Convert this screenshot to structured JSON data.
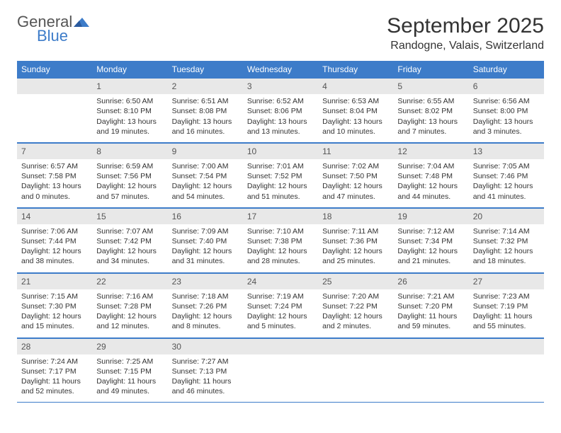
{
  "logo": {
    "text1": "General",
    "text2": "Blue"
  },
  "title": "September 2025",
  "location": "Randogne, Valais, Switzerland",
  "colors": {
    "accent": "#3d7cc9",
    "daynum_bg": "#e8e8e8"
  },
  "day_headers": [
    "Sunday",
    "Monday",
    "Tuesday",
    "Wednesday",
    "Thursday",
    "Friday",
    "Saturday"
  ],
  "weeks": [
    [
      {
        "n": "",
        "sr": "",
        "ss": "",
        "dl1": "",
        "dl2": ""
      },
      {
        "n": "1",
        "sr": "Sunrise: 6:50 AM",
        "ss": "Sunset: 8:10 PM",
        "dl1": "Daylight: 13 hours",
        "dl2": "and 19 minutes."
      },
      {
        "n": "2",
        "sr": "Sunrise: 6:51 AM",
        "ss": "Sunset: 8:08 PM",
        "dl1": "Daylight: 13 hours",
        "dl2": "and 16 minutes."
      },
      {
        "n": "3",
        "sr": "Sunrise: 6:52 AM",
        "ss": "Sunset: 8:06 PM",
        "dl1": "Daylight: 13 hours",
        "dl2": "and 13 minutes."
      },
      {
        "n": "4",
        "sr": "Sunrise: 6:53 AM",
        "ss": "Sunset: 8:04 PM",
        "dl1": "Daylight: 13 hours",
        "dl2": "and 10 minutes."
      },
      {
        "n": "5",
        "sr": "Sunrise: 6:55 AM",
        "ss": "Sunset: 8:02 PM",
        "dl1": "Daylight: 13 hours",
        "dl2": "and 7 minutes."
      },
      {
        "n": "6",
        "sr": "Sunrise: 6:56 AM",
        "ss": "Sunset: 8:00 PM",
        "dl1": "Daylight: 13 hours",
        "dl2": "and 3 minutes."
      }
    ],
    [
      {
        "n": "7",
        "sr": "Sunrise: 6:57 AM",
        "ss": "Sunset: 7:58 PM",
        "dl1": "Daylight: 13 hours",
        "dl2": "and 0 minutes."
      },
      {
        "n": "8",
        "sr": "Sunrise: 6:59 AM",
        "ss": "Sunset: 7:56 PM",
        "dl1": "Daylight: 12 hours",
        "dl2": "and 57 minutes."
      },
      {
        "n": "9",
        "sr": "Sunrise: 7:00 AM",
        "ss": "Sunset: 7:54 PM",
        "dl1": "Daylight: 12 hours",
        "dl2": "and 54 minutes."
      },
      {
        "n": "10",
        "sr": "Sunrise: 7:01 AM",
        "ss": "Sunset: 7:52 PM",
        "dl1": "Daylight: 12 hours",
        "dl2": "and 51 minutes."
      },
      {
        "n": "11",
        "sr": "Sunrise: 7:02 AM",
        "ss": "Sunset: 7:50 PM",
        "dl1": "Daylight: 12 hours",
        "dl2": "and 47 minutes."
      },
      {
        "n": "12",
        "sr": "Sunrise: 7:04 AM",
        "ss": "Sunset: 7:48 PM",
        "dl1": "Daylight: 12 hours",
        "dl2": "and 44 minutes."
      },
      {
        "n": "13",
        "sr": "Sunrise: 7:05 AM",
        "ss": "Sunset: 7:46 PM",
        "dl1": "Daylight: 12 hours",
        "dl2": "and 41 minutes."
      }
    ],
    [
      {
        "n": "14",
        "sr": "Sunrise: 7:06 AM",
        "ss": "Sunset: 7:44 PM",
        "dl1": "Daylight: 12 hours",
        "dl2": "and 38 minutes."
      },
      {
        "n": "15",
        "sr": "Sunrise: 7:07 AM",
        "ss": "Sunset: 7:42 PM",
        "dl1": "Daylight: 12 hours",
        "dl2": "and 34 minutes."
      },
      {
        "n": "16",
        "sr": "Sunrise: 7:09 AM",
        "ss": "Sunset: 7:40 PM",
        "dl1": "Daylight: 12 hours",
        "dl2": "and 31 minutes."
      },
      {
        "n": "17",
        "sr": "Sunrise: 7:10 AM",
        "ss": "Sunset: 7:38 PM",
        "dl1": "Daylight: 12 hours",
        "dl2": "and 28 minutes."
      },
      {
        "n": "18",
        "sr": "Sunrise: 7:11 AM",
        "ss": "Sunset: 7:36 PM",
        "dl1": "Daylight: 12 hours",
        "dl2": "and 25 minutes."
      },
      {
        "n": "19",
        "sr": "Sunrise: 7:12 AM",
        "ss": "Sunset: 7:34 PM",
        "dl1": "Daylight: 12 hours",
        "dl2": "and 21 minutes."
      },
      {
        "n": "20",
        "sr": "Sunrise: 7:14 AM",
        "ss": "Sunset: 7:32 PM",
        "dl1": "Daylight: 12 hours",
        "dl2": "and 18 minutes."
      }
    ],
    [
      {
        "n": "21",
        "sr": "Sunrise: 7:15 AM",
        "ss": "Sunset: 7:30 PM",
        "dl1": "Daylight: 12 hours",
        "dl2": "and 15 minutes."
      },
      {
        "n": "22",
        "sr": "Sunrise: 7:16 AM",
        "ss": "Sunset: 7:28 PM",
        "dl1": "Daylight: 12 hours",
        "dl2": "and 12 minutes."
      },
      {
        "n": "23",
        "sr": "Sunrise: 7:18 AM",
        "ss": "Sunset: 7:26 PM",
        "dl1": "Daylight: 12 hours",
        "dl2": "and 8 minutes."
      },
      {
        "n": "24",
        "sr": "Sunrise: 7:19 AM",
        "ss": "Sunset: 7:24 PM",
        "dl1": "Daylight: 12 hours",
        "dl2": "and 5 minutes."
      },
      {
        "n": "25",
        "sr": "Sunrise: 7:20 AM",
        "ss": "Sunset: 7:22 PM",
        "dl1": "Daylight: 12 hours",
        "dl2": "and 2 minutes."
      },
      {
        "n": "26",
        "sr": "Sunrise: 7:21 AM",
        "ss": "Sunset: 7:20 PM",
        "dl1": "Daylight: 11 hours",
        "dl2": "and 59 minutes."
      },
      {
        "n": "27",
        "sr": "Sunrise: 7:23 AM",
        "ss": "Sunset: 7:19 PM",
        "dl1": "Daylight: 11 hours",
        "dl2": "and 55 minutes."
      }
    ],
    [
      {
        "n": "28",
        "sr": "Sunrise: 7:24 AM",
        "ss": "Sunset: 7:17 PM",
        "dl1": "Daylight: 11 hours",
        "dl2": "and 52 minutes."
      },
      {
        "n": "29",
        "sr": "Sunrise: 7:25 AM",
        "ss": "Sunset: 7:15 PM",
        "dl1": "Daylight: 11 hours",
        "dl2": "and 49 minutes."
      },
      {
        "n": "30",
        "sr": "Sunrise: 7:27 AM",
        "ss": "Sunset: 7:13 PM",
        "dl1": "Daylight: 11 hours",
        "dl2": "and 46 minutes."
      },
      {
        "n": "",
        "sr": "",
        "ss": "",
        "dl1": "",
        "dl2": ""
      },
      {
        "n": "",
        "sr": "",
        "ss": "",
        "dl1": "",
        "dl2": ""
      },
      {
        "n": "",
        "sr": "",
        "ss": "",
        "dl1": "",
        "dl2": ""
      },
      {
        "n": "",
        "sr": "",
        "ss": "",
        "dl1": "",
        "dl2": ""
      }
    ]
  ]
}
